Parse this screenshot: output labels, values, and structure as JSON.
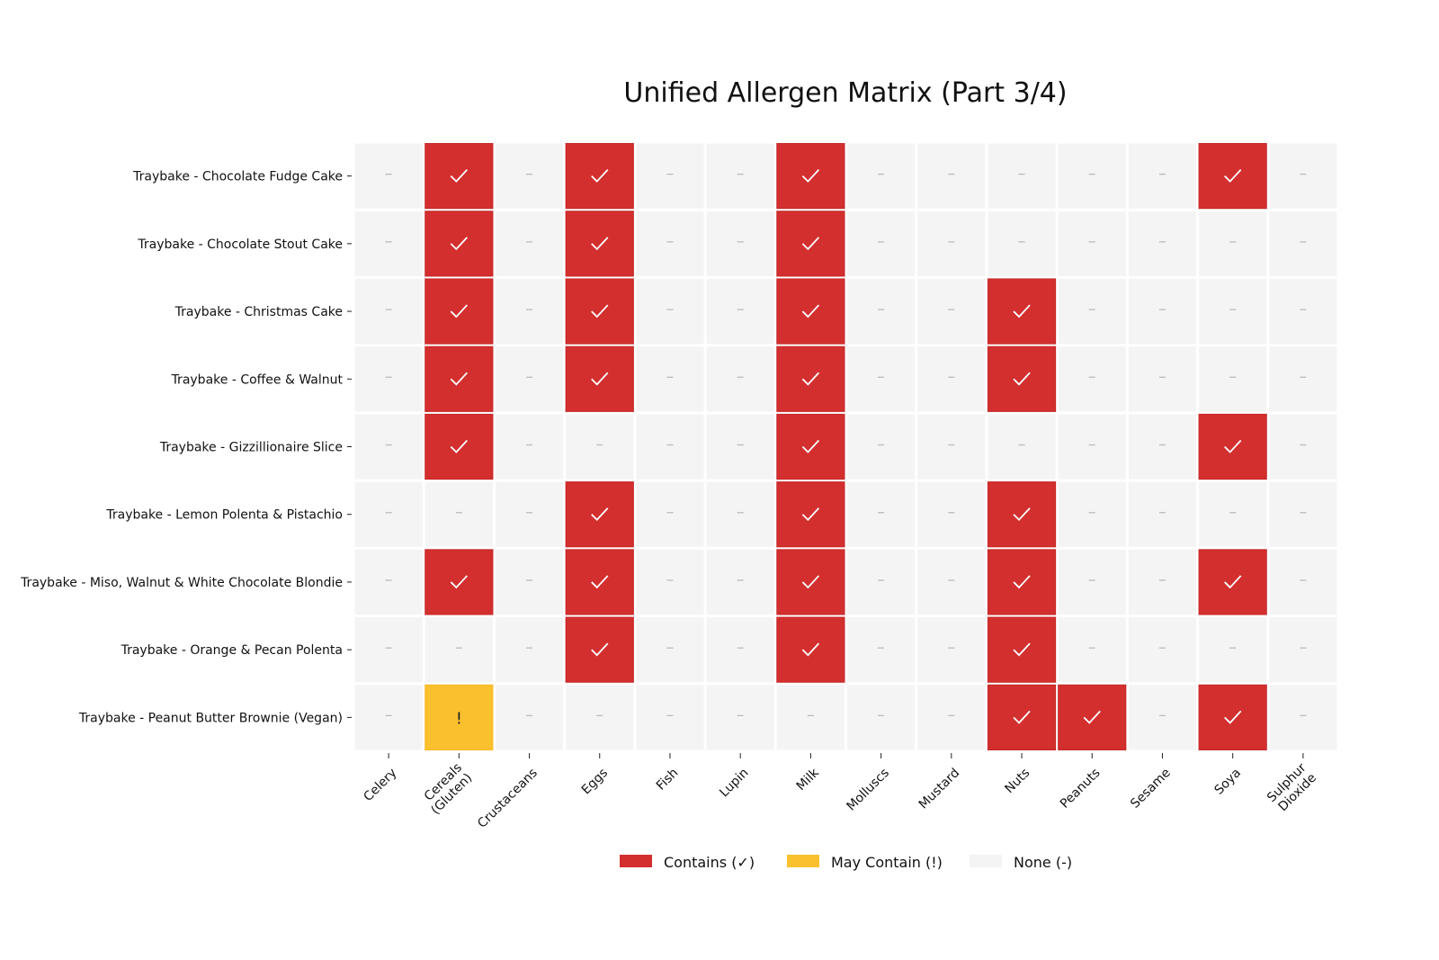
{
  "chart_data": {
    "type": "heatmap",
    "title": "Unified Allergen Matrix (Part 3/4)",
    "columns": [
      "Celery",
      "Cereals\n(Gluten)",
      "Crustaceans",
      "Eggs",
      "Fish",
      "Lupin",
      "Milk",
      "Molluscs",
      "Mustard",
      "Nuts",
      "Peanuts",
      "Sesame",
      "Soya",
      "Sulphur\nDioxide"
    ],
    "rows": [
      "Traybake - Chocolate Fudge Cake",
      "Traybake - Chocolate Stout Cake",
      "Traybake - Christmas Cake",
      "Traybake - Coffee & Walnut",
      "Traybake - Gizzillionaire Slice",
      "Traybake - Lemon Polenta & Pistachio",
      "Traybake - Miso, Walnut & White Chocolate Blondie",
      "Traybake - Orange & Pecan Polenta",
      "Traybake - Peanut Butter Brownie (Vegan)"
    ],
    "values": [
      [
        "N",
        "C",
        "N",
        "C",
        "N",
        "N",
        "C",
        "N",
        "N",
        "N",
        "N",
        "N",
        "C",
        "N"
      ],
      [
        "N",
        "C",
        "N",
        "C",
        "N",
        "N",
        "C",
        "N",
        "N",
        "N",
        "N",
        "N",
        "N",
        "N"
      ],
      [
        "N",
        "C",
        "N",
        "C",
        "N",
        "N",
        "C",
        "N",
        "N",
        "C",
        "N",
        "N",
        "N",
        "N"
      ],
      [
        "N",
        "C",
        "N",
        "C",
        "N",
        "N",
        "C",
        "N",
        "N",
        "C",
        "N",
        "N",
        "N",
        "N"
      ],
      [
        "N",
        "C",
        "N",
        "N",
        "N",
        "N",
        "C",
        "N",
        "N",
        "N",
        "N",
        "N",
        "C",
        "N"
      ],
      [
        "N",
        "N",
        "N",
        "C",
        "N",
        "N",
        "C",
        "N",
        "N",
        "C",
        "N",
        "N",
        "N",
        "N"
      ],
      [
        "N",
        "C",
        "N",
        "C",
        "N",
        "N",
        "C",
        "N",
        "N",
        "C",
        "N",
        "N",
        "C",
        "N"
      ],
      [
        "N",
        "N",
        "N",
        "C",
        "N",
        "N",
        "C",
        "N",
        "N",
        "C",
        "N",
        "N",
        "N",
        "N"
      ],
      [
        "N",
        "M",
        "N",
        "N",
        "N",
        "N",
        "N",
        "N",
        "N",
        "C",
        "C",
        "N",
        "C",
        "N"
      ]
    ],
    "categories": {
      "C": {
        "label": "Contains (✓)",
        "symbol": "✓",
        "color": "#d32f2f"
      },
      "M": {
        "label": "May Contain (!)",
        "symbol": "!",
        "color": "#fbc02d"
      },
      "N": {
        "label": "None (-)",
        "symbol": "–",
        "color": "#f4f4f4"
      }
    },
    "legend_order": [
      "C",
      "M",
      "N"
    ],
    "legend_placement": "bottom-center"
  }
}
